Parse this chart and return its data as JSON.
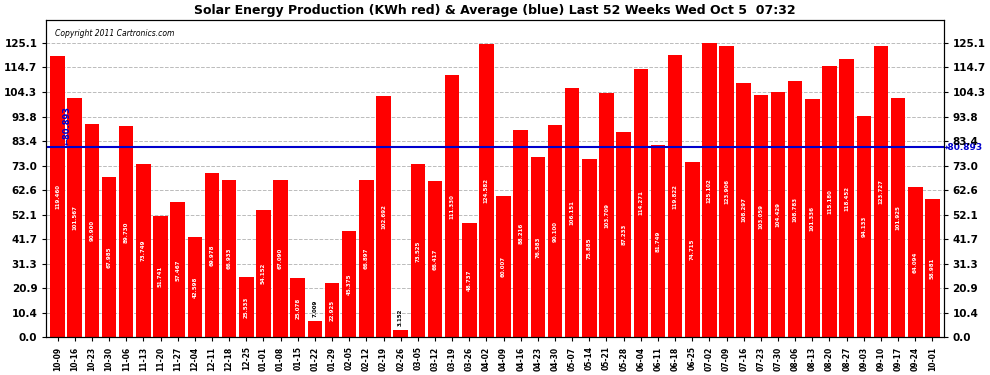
{
  "title": "Solar Energy Production (KWh red) & Average (blue) Last 52 Weeks Wed Oct 5  07:32",
  "copyright": "Copyright 2011 Cartronics.com",
  "average": 80.893,
  "bar_color": "#ff0000",
  "avg_line_color": "#0000cc",
  "background_color": "#ffffff",
  "grid_color": "#bbbbbb",
  "ylim": [
    0.0,
    135.0
  ],
  "yticks": [
    0.0,
    10.4,
    20.9,
    31.3,
    41.7,
    52.1,
    62.6,
    73.0,
    83.4,
    93.8,
    104.3,
    114.7,
    125.1
  ],
  "categories": [
    "10-09",
    "10-16",
    "10-23",
    "10-30",
    "11-06",
    "11-13",
    "11-20",
    "11-27",
    "12-04",
    "12-11",
    "12-18",
    "12-25",
    "01-01",
    "01-08",
    "01-15",
    "01-22",
    "01-29",
    "02-05",
    "02-12",
    "02-19",
    "02-26",
    "03-05",
    "03-12",
    "03-19",
    "03-26",
    "04-02",
    "04-09",
    "04-16",
    "04-23",
    "04-30",
    "05-07",
    "05-14",
    "05-21",
    "05-28",
    "06-04",
    "06-11",
    "06-18",
    "06-25",
    "07-02",
    "07-09",
    "07-16",
    "07-23",
    "07-30",
    "08-06",
    "08-13",
    "08-20",
    "08-27",
    "09-03",
    "09-10",
    "09-17",
    "09-24",
    "10-01"
  ],
  "values": [
    119.46,
    101.567,
    90.9,
    67.985,
    89.73,
    73.749,
    51.741,
    57.467,
    42.598,
    69.978,
    66.933,
    25.533,
    54.152,
    67.09,
    25.078,
    7.009,
    22.925,
    45.375,
    66.897,
    102.692,
    3.152,
    73.525,
    66.417,
    111.33,
    48.737,
    124.582,
    60.007,
    88.216,
    76.583,
    90.1,
    106.151,
    75.885,
    103.709,
    87.233,
    114.271,
    81.749,
    119.822,
    74.715,
    125.102,
    123.906,
    108.297,
    103.059,
    104.429,
    108.783,
    101.336,
    115.18,
    118.452,
    94.133,
    123.727,
    101.925,
    64.094,
    58.981
  ]
}
